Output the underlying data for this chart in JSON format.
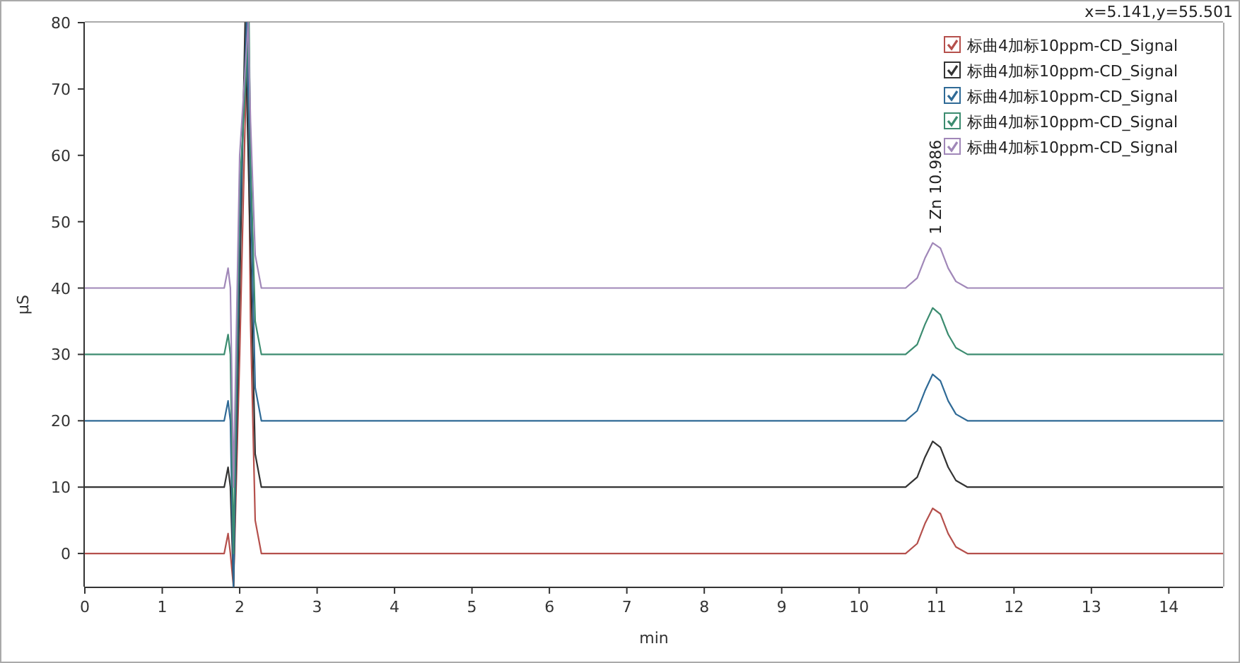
{
  "chart_data": {
    "type": "line",
    "xlabel": "min",
    "ylabel": "μS",
    "annotations": [
      {
        "text": "1 Zn 10.986",
        "x": 10.986,
        "y": 46.8
      },
      "x=5.141,y=55.501"
    ],
    "xlim": [
      0,
      14.7
    ],
    "ylim": [
      -5,
      80
    ],
    "xticks": [
      0,
      1,
      2,
      3,
      4,
      5,
      6,
      7,
      8,
      9,
      10,
      11,
      12,
      13,
      14
    ],
    "yticks": [
      0,
      10,
      20,
      30,
      40,
      50,
      60,
      70,
      80
    ],
    "grid": false,
    "legend": "top right",
    "marker": "none",
    "line_style": "solid",
    "series": [
      {
        "name": "标曲4加标10ppm-CD_Signal",
        "color": "#b5504c",
        "x": [
          0,
          1.8,
          1.85,
          1.88,
          1.92,
          2.0,
          2.1,
          2.14,
          2.2,
          2.28,
          10.6,
          10.75,
          10.85,
          10.95,
          11.05,
          11.15,
          11.25,
          11.4,
          14.7
        ],
        "values": [
          0,
          0,
          3,
          0,
          -5,
          30,
          80,
          35,
          5,
          0,
          0,
          1.5,
          4.5,
          6.8,
          6,
          3,
          1,
          0,
          0
        ]
      },
      {
        "name": "标曲4加标10ppm-CD_Signal",
        "color": "#333333",
        "x": [
          0,
          1.8,
          1.85,
          1.88,
          1.92,
          2.0,
          2.07,
          2.14,
          2.2,
          2.28,
          10.6,
          10.75,
          10.85,
          10.95,
          11.05,
          11.15,
          11.25,
          11.4,
          14.7
        ],
        "values": [
          10,
          10,
          13,
          10,
          -5,
          40,
          80,
          45,
          15,
          10,
          10,
          11.5,
          14.5,
          16.9,
          16,
          13,
          11,
          10,
          10
        ]
      },
      {
        "name": "标曲4加标10ppm-CD_Signal",
        "color": "#2f6a96",
        "x": [
          0,
          1.8,
          1.85,
          1.88,
          1.92,
          2.0,
          2.09,
          2.14,
          2.2,
          2.28,
          10.6,
          10.75,
          10.85,
          10.95,
          11.05,
          11.15,
          11.25,
          11.4,
          14.7
        ],
        "values": [
          20,
          20,
          23,
          20,
          -5,
          50,
          80,
          55,
          25,
          20,
          20,
          21.5,
          24.5,
          27,
          26,
          23,
          21,
          20,
          20
        ]
      },
      {
        "name": "标曲4加标10ppm-CD_Signal",
        "color": "#3c8c70",
        "x": [
          0,
          1.8,
          1.85,
          1.88,
          1.92,
          2.0,
          2.12,
          2.14,
          2.2,
          2.28,
          10.6,
          10.75,
          10.85,
          10.95,
          11.05,
          11.15,
          11.25,
          11.4,
          14.7
        ],
        "values": [
          30,
          30,
          33,
          30,
          0,
          55,
          80,
          60,
          35,
          30,
          30,
          31.5,
          34.5,
          37,
          36,
          33,
          31,
          30,
          30
        ]
      },
      {
        "name": "标曲4加标10ppm-CD_Signal",
        "color": "#a087b8",
        "x": [
          0,
          1.8,
          1.85,
          1.88,
          1.92,
          2.0,
          2.11,
          2.14,
          2.2,
          2.28,
          10.6,
          10.75,
          10.85,
          10.95,
          11.05,
          11.15,
          11.25,
          11.4,
          14.7
        ],
        "values": [
          40,
          40,
          43,
          40,
          10,
          60,
          80,
          65,
          45,
          40,
          40,
          41.5,
          44.5,
          46.8,
          46,
          43,
          41,
          40,
          40
        ]
      }
    ]
  }
}
